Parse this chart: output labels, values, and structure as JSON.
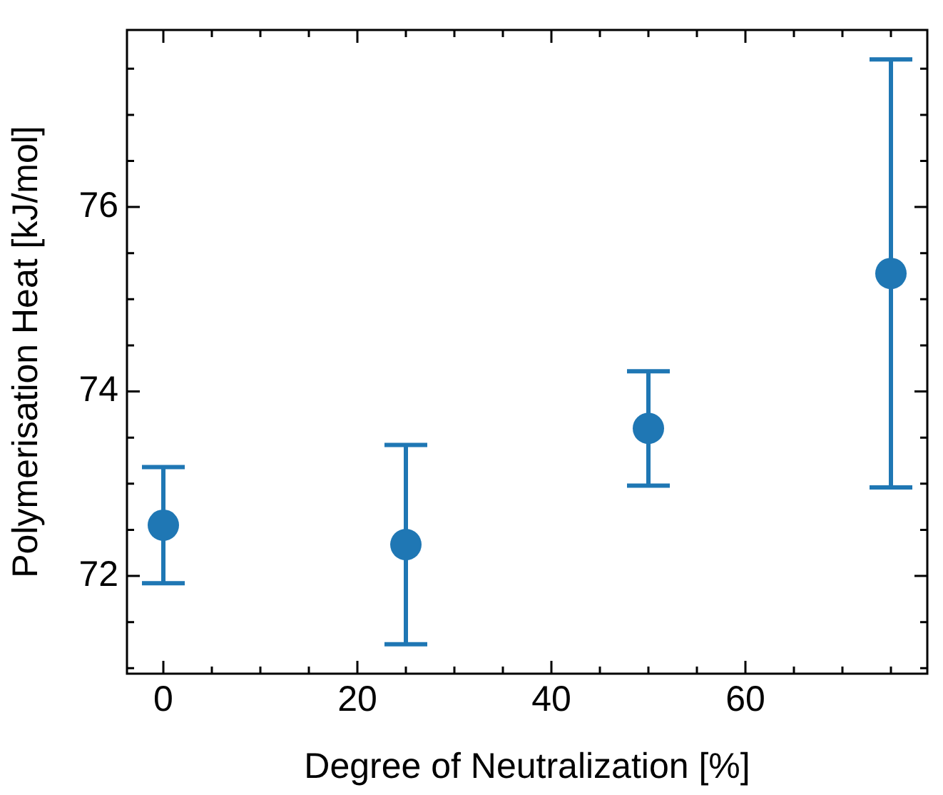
{
  "chart_data": {
    "type": "scatter",
    "xlabel": "Degree of Neutralization [%]",
    "ylabel": "Polymerisation Heat [kJ/mol]",
    "x": [
      0,
      25,
      50,
      75
    ],
    "series": [
      {
        "color": "#1f77b4",
        "values": [
          72.55,
          72.34,
          73.6,
          75.28
        ],
        "errors": [
          0.63,
          1.08,
          0.62,
          2.32
        ]
      }
    ],
    "marker": "circle",
    "grid": false,
    "legend": false,
    "xlim": [
      -3.75,
      78.75
    ],
    "xticks": [
      0,
      {
        "value": 5,
        "label": null
      },
      {
        "value": 10,
        "label": null
      },
      {
        "value": 15,
        "label": null
      },
      20,
      {
        "value": 25,
        "label": null
      },
      {
        "value": 30,
        "label": null
      },
      {
        "value": 35,
        "label": null
      },
      40,
      {
        "value": 45,
        "label": null
      },
      {
        "value": 50,
        "label": null
      },
      {
        "value": 55,
        "label": null
      },
      60,
      {
        "value": 65,
        "label": null
      },
      {
        "value": 70,
        "label": null
      },
      {
        "value": 75,
        "label": null
      }
    ],
    "ylim": [
      70.94,
      77.92
    ],
    "yticks": [
      {
        "value": 71,
        "label": null
      },
      {
        "value": 71.5,
        "label": null
      },
      72,
      {
        "value": 72.5,
        "label": null
      },
      {
        "value": 73,
        "label": null
      },
      {
        "value": 73.5,
        "label": null
      },
      74,
      {
        "value": 74.5,
        "label": null
      },
      {
        "value": 75,
        "label": null
      },
      {
        "value": 75.5,
        "label": null
      },
      76,
      {
        "value": 76.5,
        "label": null
      },
      {
        "value": 77,
        "label": null
      },
      {
        "value": 77.5,
        "label": null
      }
    ]
  }
}
